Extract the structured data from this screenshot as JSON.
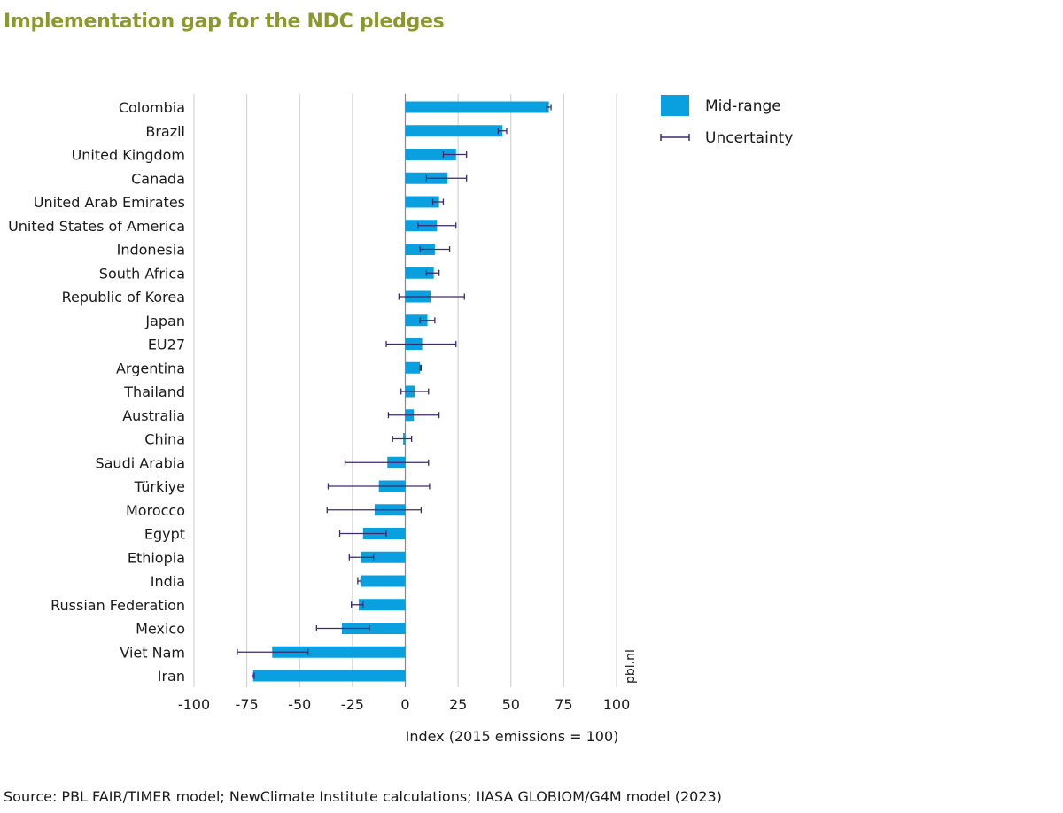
{
  "title": "Implementation gap for the NDC pledges",
  "source": "Source: PBL FAIR/TIMER model; NewClimate Institute calculations; IIASA GLOBIOM/G4M model (2023)",
  "watermark": "pbl.nl",
  "colors": {
    "bar": "#0aa0e0",
    "error": "#3d2a6a",
    "grid": "#cccccc",
    "title": "#8a9a2a"
  },
  "chart_data": {
    "type": "bar",
    "orientation": "horizontal",
    "title": "Implementation gap for the NDC pledges",
    "xlabel": "Index (2015 emissions = 100)",
    "ylabel": "",
    "xlim": [
      -100,
      100
    ],
    "xticks": [
      -100,
      -75,
      -50,
      -25,
      0,
      25,
      50,
      75,
      100
    ],
    "xtick_labels": [
      "-100",
      "-75",
      "-50",
      "-25",
      "0",
      "25",
      "50",
      "75",
      "100"
    ],
    "grid": "vertical",
    "legend": {
      "placement": "top-right",
      "entries": [
        {
          "label": "Mid-range",
          "kind": "bar"
        },
        {
          "label": "Uncertainty",
          "kind": "errorbar"
        }
      ]
    },
    "categories": [
      "Colombia",
      "Brazil",
      "United Kingdom",
      "Canada",
      "United Arab Emirates",
      "United States of America",
      "Indonesia",
      "South Africa",
      "Republic of Korea",
      "Japan",
      "EU27",
      "Argentina",
      "Thailand",
      "Australia",
      "China",
      "Saudi Arabia",
      "Türkiye",
      "Morocco",
      "Egypt",
      "Ethiopia",
      "India",
      "Russian Federation",
      "Mexico",
      "Viet Nam",
      "Iran"
    ],
    "series": [
      {
        "name": "Mid-range",
        "values": [
          68,
          46,
          24,
          20,
          16,
          15,
          14,
          13.5,
          12,
          10.5,
          8,
          7,
          4.5,
          4,
          -1,
          -8.5,
          -12.5,
          -14.5,
          -20,
          -21,
          -21,
          -22,
          -30,
          -63,
          -72
        ]
      },
      {
        "name": "Uncertainty",
        "low": [
          67,
          44,
          18,
          10,
          13,
          6,
          7,
          10,
          -3,
          7,
          -9,
          7,
          -2,
          -8,
          -6,
          -28.5,
          -36.5,
          -37,
          -31,
          -26.5,
          -22.5,
          -25.5,
          -42,
          -79.5,
          -72.5
        ],
        "high": [
          69,
          48,
          29,
          29,
          18,
          24,
          21,
          16,
          28,
          14,
          24,
          7.5,
          11,
          16,
          3,
          11,
          11.5,
          7.5,
          -9,
          -15,
          -21,
          -20,
          -17,
          -46,
          -71.5
        ]
      }
    ]
  }
}
